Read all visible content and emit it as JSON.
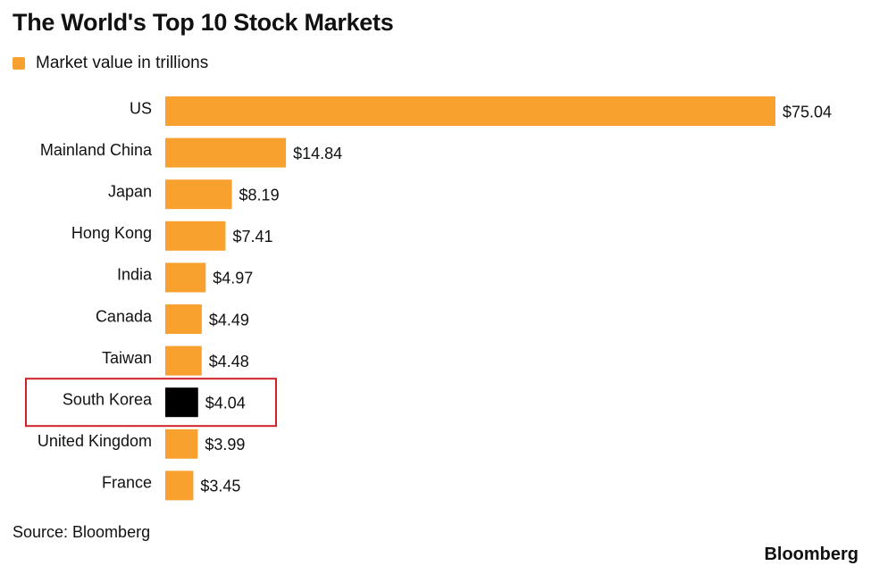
{
  "title": "The World's Top 10 Stock Markets",
  "source": "Source: Bloomberg",
  "brand": "Bloomberg",
  "colors": {
    "bar": "#f9a12e",
    "highlight_bar": "#000000",
    "highlight_box": "#d0202a",
    "text": "#111111"
  },
  "chart_data": {
    "type": "bar",
    "orientation": "horizontal",
    "title": "The World's Top 10 Stock Markets",
    "legend": [
      "Market value in trillions"
    ],
    "legend_position": "top-left",
    "categories": [
      "US",
      "Mainland China",
      "Japan",
      "Hong Kong",
      "India",
      "Canada",
      "Taiwan",
      "South Korea",
      "United Kingdom",
      "France"
    ],
    "values": [
      75.04,
      14.84,
      8.19,
      7.41,
      4.97,
      4.49,
      4.48,
      4.04,
      3.99,
      3.45
    ],
    "value_labels": [
      "$75.04",
      "$14.84",
      "$8.19",
      "$7.41",
      "$4.97",
      "$4.49",
      "$4.48",
      "$4.04",
      "$3.99",
      "$3.45"
    ],
    "highlighted_category": "South Korea",
    "xlim": [
      0,
      75.04
    ],
    "xlabel": "",
    "ylabel": "",
    "grid": false
  }
}
